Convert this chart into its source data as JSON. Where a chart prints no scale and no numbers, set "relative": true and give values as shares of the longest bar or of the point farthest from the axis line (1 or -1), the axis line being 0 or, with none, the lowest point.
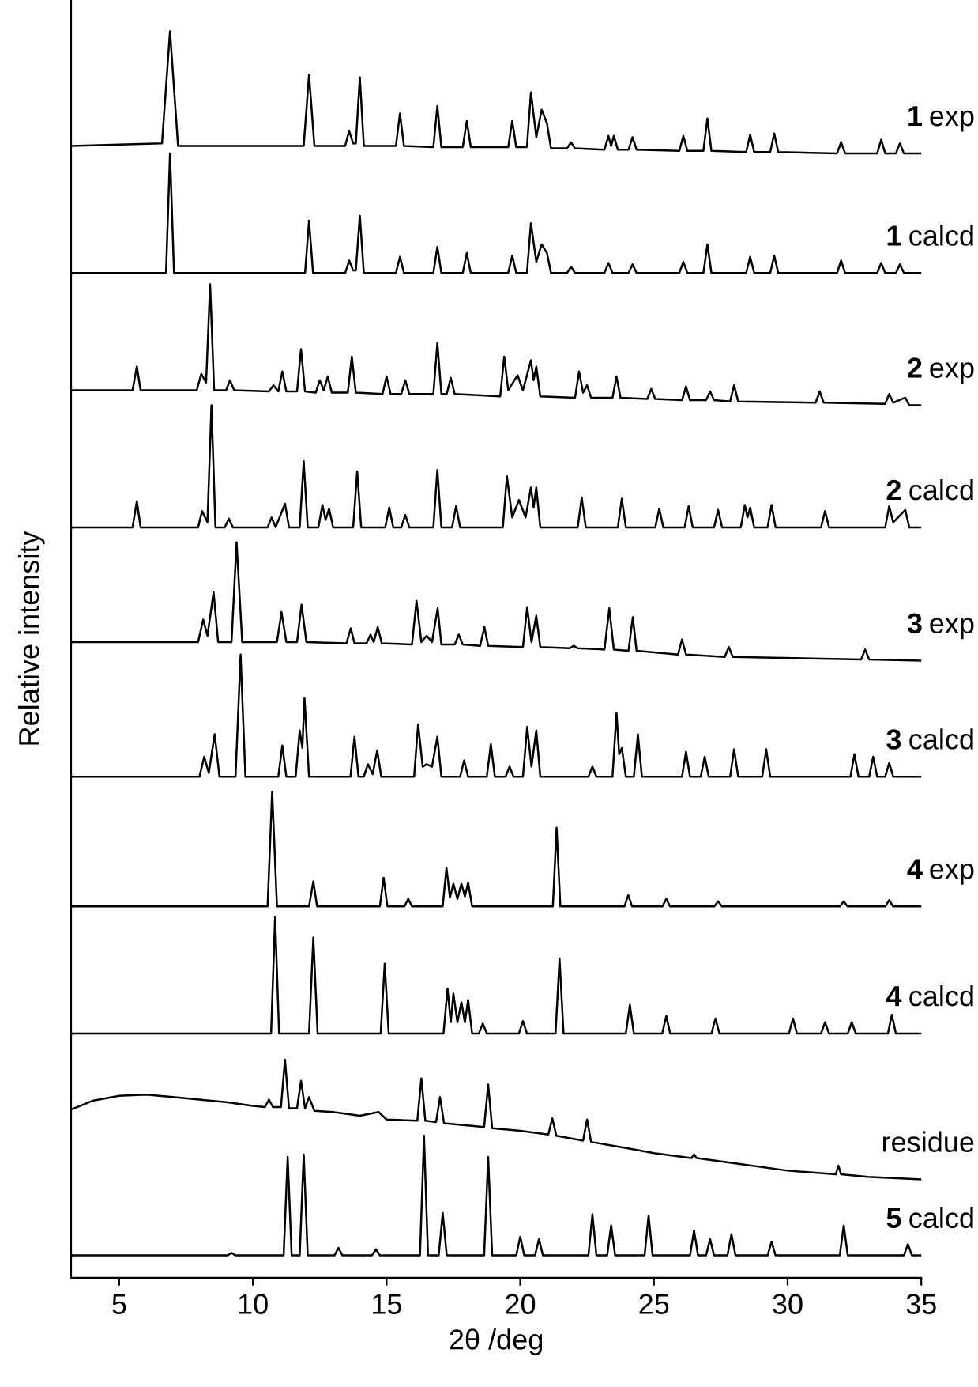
{
  "chart_data": {
    "type": "line",
    "relative": true,
    "xlabel": "2θ /deg",
    "ylabel": "Relative intensity",
    "xlim": [
      3.2,
      35
    ],
    "xticks": [
      5,
      10,
      15,
      20,
      25,
      30,
      35
    ],
    "series": [
      {
        "name": "1 exp",
        "color": "#000000",
        "x": [
          3.2,
          6.6,
          6.9,
          7.2,
          11.9,
          12.1,
          12.3,
          13.45,
          13.6,
          13.75,
          13.85,
          14.0,
          14.15,
          15.35,
          15.5,
          15.65,
          16.75,
          16.9,
          17.05,
          17.85,
          18.0,
          18.15,
          19.55,
          19.7,
          19.85,
          20.25,
          20.4,
          20.6,
          20.8,
          21.0,
          21.15,
          21.75,
          21.9,
          22.05,
          23.15,
          23.3,
          23.4,
          23.5,
          23.65,
          24.05,
          24.2,
          24.35,
          25.95,
          26.1,
          26.25,
          26.85,
          27.0,
          27.15,
          28.45,
          28.6,
          28.75,
          29.35,
          29.5,
          29.65,
          31.85,
          32.0,
          32.15,
          33.35,
          33.5,
          33.65,
          34.05,
          34.2,
          34.35,
          35
        ],
        "values": [
          0.908,
          0.91,
          1.0,
          0.908,
          0.908,
          0.965,
          0.908,
          0.908,
          0.92,
          0.91,
          0.91,
          0.963,
          0.908,
          0.908,
          0.934,
          0.908,
          0.907,
          0.94,
          0.907,
          0.907,
          0.928,
          0.907,
          0.907,
          0.928,
          0.907,
          0.907,
          0.951,
          0.915,
          0.937,
          0.926,
          0.906,
          0.906,
          0.911,
          0.906,
          0.905,
          0.916,
          0.908,
          0.916,
          0.905,
          0.905,
          0.915,
          0.905,
          0.904,
          0.916,
          0.904,
          0.904,
          0.93,
          0.904,
          0.903,
          0.917,
          0.903,
          0.903,
          0.918,
          0.903,
          0.902,
          0.911,
          0.902,
          0.902,
          0.913,
          0.902,
          0.902,
          0.91,
          0.902,
          0.902
        ]
      },
      {
        "name": "1 calcd",
        "color": "#000000",
        "x": [
          3.2,
          6.75,
          6.9,
          7.05,
          11.95,
          12.1,
          12.25,
          13.45,
          13.6,
          13.75,
          13.85,
          14.0,
          14.15,
          15.35,
          15.5,
          15.65,
          16.75,
          16.9,
          17.05,
          17.85,
          18.0,
          18.15,
          19.55,
          19.7,
          19.85,
          20.25,
          20.4,
          20.6,
          20.8,
          21.0,
          21.15,
          21.75,
          21.9,
          22.05,
          23.15,
          23.3,
          23.45,
          24.05,
          24.2,
          24.35,
          25.95,
          26.1,
          26.25,
          26.85,
          27.0,
          27.15,
          28.45,
          28.6,
          28.75,
          29.35,
          29.5,
          29.65,
          31.85,
          32.0,
          32.15,
          33.35,
          33.5,
          33.65,
          34.05,
          34.2,
          34.35,
          35
        ],
        "values": [
          0.806,
          0.806,
          0.902,
          0.806,
          0.806,
          0.848,
          0.806,
          0.806,
          0.816,
          0.808,
          0.808,
          0.852,
          0.806,
          0.806,
          0.819,
          0.806,
          0.806,
          0.827,
          0.806,
          0.806,
          0.822,
          0.806,
          0.806,
          0.82,
          0.806,
          0.806,
          0.846,
          0.815,
          0.829,
          0.822,
          0.806,
          0.806,
          0.811,
          0.806,
          0.806,
          0.814,
          0.806,
          0.806,
          0.813,
          0.806,
          0.806,
          0.815,
          0.806,
          0.806,
          0.829,
          0.806,
          0.806,
          0.819,
          0.806,
          0.806,
          0.82,
          0.806,
          0.806,
          0.816,
          0.806,
          0.806,
          0.814,
          0.806,
          0.806,
          0.813,
          0.806,
          0.806
        ]
      },
      {
        "name": "2 exp",
        "color": "#000000",
        "x": [
          3.2,
          5.5,
          5.66,
          5.8,
          7.9,
          8.07,
          8.25,
          8.4,
          8.55,
          9.0,
          9.14,
          9.3,
          10.6,
          10.77,
          10.95,
          11.1,
          11.25,
          11.65,
          11.8,
          11.95,
          12.35,
          12.5,
          12.65,
          12.8,
          12.95,
          13.55,
          13.7,
          13.85,
          14.85,
          15.0,
          15.15,
          15.55,
          15.7,
          15.85,
          16.75,
          16.9,
          17.05,
          17.25,
          17.4,
          17.55,
          19.25,
          19.4,
          19.55,
          19.9,
          20.1,
          20.4,
          20.5,
          20.6,
          20.75,
          22.05,
          22.2,
          22.35,
          22.5,
          22.65,
          23.45,
          23.6,
          23.75,
          24.75,
          24.9,
          25.05,
          26.05,
          26.2,
          26.35,
          26.95,
          27.1,
          27.25,
          27.85,
          28.0,
          28.15,
          31.05,
          31.2,
          31.35,
          33.65,
          33.8,
          33.95,
          34.4,
          34.55,
          35
        ],
        "values": [
          0.712,
          0.712,
          0.731,
          0.712,
          0.712,
          0.725,
          0.718,
          0.797,
          0.712,
          0.712,
          0.72,
          0.712,
          0.711,
          0.716,
          0.711,
          0.727,
          0.711,
          0.711,
          0.745,
          0.711,
          0.71,
          0.72,
          0.712,
          0.723,
          0.71,
          0.71,
          0.739,
          0.71,
          0.709,
          0.723,
          0.709,
          0.709,
          0.72,
          0.709,
          0.709,
          0.75,
          0.709,
          0.709,
          0.722,
          0.709,
          0.707,
          0.739,
          0.712,
          0.724,
          0.712,
          0.736,
          0.72,
          0.731,
          0.707,
          0.706,
          0.727,
          0.71,
          0.716,
          0.706,
          0.706,
          0.723,
          0.706,
          0.705,
          0.713,
          0.705,
          0.704,
          0.715,
          0.704,
          0.704,
          0.711,
          0.704,
          0.703,
          0.716,
          0.703,
          0.702,
          0.711,
          0.702,
          0.701,
          0.709,
          0.702,
          0.706,
          0.7,
          0.7
        ]
      },
      {
        "name": "2 calcd",
        "color": "#000000",
        "x": [
          3.2,
          5.5,
          5.66,
          5.8,
          7.95,
          8.1,
          8.3,
          8.45,
          8.6,
          8.95,
          9.1,
          9.25,
          10.55,
          10.7,
          10.85,
          11.2,
          11.35,
          11.75,
          11.9,
          12.05,
          12.45,
          12.6,
          12.72,
          12.85,
          13.0,
          13.75,
          13.9,
          14.05,
          14.95,
          15.1,
          15.25,
          15.55,
          15.7,
          15.85,
          16.75,
          16.9,
          17.05,
          17.45,
          17.6,
          17.75,
          19.35,
          19.5,
          19.7,
          19.95,
          20.2,
          20.4,
          20.5,
          20.6,
          20.75,
          22.15,
          22.3,
          22.45,
          23.65,
          23.8,
          23.95,
          25.05,
          25.2,
          25.35,
          26.15,
          26.3,
          26.45,
          27.25,
          27.4,
          27.55,
          28.25,
          28.4,
          28.5,
          28.6,
          28.75,
          29.25,
          29.4,
          29.55,
          31.25,
          31.4,
          31.55,
          33.65,
          33.8,
          33.95,
          34.4,
          34.55,
          35
        ],
        "values": [
          0.602,
          0.602,
          0.623,
          0.602,
          0.602,
          0.615,
          0.606,
          0.7,
          0.602,
          0.602,
          0.609,
          0.602,
          0.602,
          0.61,
          0.602,
          0.621,
          0.602,
          0.602,
          0.655,
          0.602,
          0.602,
          0.62,
          0.608,
          0.617,
          0.602,
          0.602,
          0.647,
          0.602,
          0.602,
          0.618,
          0.602,
          0.602,
          0.612,
          0.602,
          0.602,
          0.648,
          0.602,
          0.602,
          0.619,
          0.602,
          0.602,
          0.643,
          0.61,
          0.624,
          0.61,
          0.634,
          0.618,
          0.634,
          0.602,
          0.602,
          0.626,
          0.602,
          0.602,
          0.625,
          0.602,
          0.602,
          0.617,
          0.602,
          0.602,
          0.619,
          0.602,
          0.602,
          0.616,
          0.602,
          0.602,
          0.62,
          0.61,
          0.618,
          0.602,
          0.602,
          0.62,
          0.602,
          0.602,
          0.615,
          0.602,
          0.602,
          0.619,
          0.606,
          0.616,
          0.602,
          0.602
        ]
      },
      {
        "name": "3 exp",
        "color": "#000000",
        "x": [
          3.2,
          7.95,
          8.14,
          8.3,
          8.53,
          8.7,
          9.2,
          9.39,
          9.6,
          10.9,
          11.07,
          11.25,
          11.65,
          11.82,
          12.0,
          13.5,
          13.66,
          13.8,
          14.25,
          14.4,
          14.52,
          14.67,
          14.82,
          15.95,
          16.12,
          16.3,
          16.5,
          16.7,
          16.91,
          17.05,
          17.55,
          17.7,
          17.85,
          18.5,
          18.66,
          18.8,
          20.1,
          20.26,
          20.42,
          20.6,
          20.75,
          21.85,
          22.0,
          22.15,
          23.15,
          23.33,
          23.5,
          24.05,
          24.21,
          24.35,
          25.9,
          26.05,
          26.2,
          27.65,
          27.8,
          27.95,
          32.75,
          32.9,
          33.05,
          35
        ],
        "values": [
          0.51,
          0.51,
          0.528,
          0.515,
          0.55,
          0.51,
          0.51,
          0.59,
          0.51,
          0.51,
          0.534,
          0.51,
          0.51,
          0.54,
          0.51,
          0.509,
          0.521,
          0.509,
          0.509,
          0.516,
          0.51,
          0.522,
          0.509,
          0.508,
          0.543,
          0.51,
          0.515,
          0.51,
          0.537,
          0.508,
          0.508,
          0.516,
          0.508,
          0.507,
          0.522,
          0.507,
          0.506,
          0.538,
          0.51,
          0.531,
          0.506,
          0.505,
          0.507,
          0.505,
          0.504,
          0.537,
          0.504,
          0.503,
          0.53,
          0.503,
          0.5,
          0.512,
          0.5,
          0.498,
          0.506,
          0.498,
          0.496,
          0.504,
          0.496,
          0.495
        ]
      },
      {
        "name": "3 calcd",
        "color": "#000000",
        "x": [
          3.2,
          8.0,
          8.18,
          8.35,
          8.57,
          8.75,
          9.35,
          9.54,
          9.72,
          10.95,
          11.1,
          11.25,
          11.6,
          11.75,
          11.85,
          11.93,
          12.1,
          13.65,
          13.8,
          13.95,
          14.15,
          14.3,
          14.48,
          14.65,
          14.8,
          16.03,
          16.18,
          16.35,
          16.5,
          16.7,
          16.9,
          17.05,
          17.75,
          17.9,
          18.05,
          18.75,
          18.9,
          19.05,
          19.45,
          19.6,
          19.75,
          20.1,
          20.26,
          20.42,
          20.6,
          20.75,
          22.55,
          22.7,
          22.85,
          23.45,
          23.6,
          23.7,
          23.8,
          23.95,
          24.25,
          24.4,
          24.55,
          26.05,
          26.2,
          26.35,
          26.75,
          26.9,
          27.05,
          27.85,
          28.0,
          28.15,
          29.05,
          29.2,
          29.35,
          32.35,
          32.5,
          32.65,
          33.05,
          33.2,
          33.35,
          33.65,
          33.8,
          33.95,
          35
        ],
        "values": [
          0.402,
          0.402,
          0.418,
          0.405,
          0.436,
          0.402,
          0.402,
          0.5,
          0.402,
          0.402,
          0.427,
          0.402,
          0.402,
          0.439,
          0.425,
          0.465,
          0.402,
          0.402,
          0.434,
          0.402,
          0.402,
          0.412,
          0.404,
          0.423,
          0.402,
          0.402,
          0.444,
          0.41,
          0.412,
          0.41,
          0.434,
          0.402,
          0.402,
          0.415,
          0.402,
          0.402,
          0.428,
          0.402,
          0.402,
          0.41,
          0.402,
          0.402,
          0.442,
          0.41,
          0.439,
          0.402,
          0.402,
          0.41,
          0.402,
          0.402,
          0.453,
          0.42,
          0.425,
          0.402,
          0.402,
          0.436,
          0.402,
          0.402,
          0.422,
          0.402,
          0.402,
          0.418,
          0.402,
          0.402,
          0.424,
          0.402,
          0.402,
          0.424,
          0.402,
          0.402,
          0.42,
          0.402,
          0.402,
          0.418,
          0.402,
          0.402,
          0.413,
          0.402,
          0.402
        ]
      },
      {
        "name": "4 exp",
        "color": "#000000",
        "x": [
          3.2,
          10.55,
          10.72,
          10.9,
          12.1,
          12.26,
          12.4,
          14.75,
          14.89,
          15.03,
          15.67,
          15.81,
          15.95,
          17.1,
          17.24,
          17.37,
          17.5,
          17.65,
          17.8,
          17.93,
          18.05,
          18.2,
          21.22,
          21.36,
          21.5,
          23.9,
          24.04,
          24.18,
          25.32,
          25.46,
          25.6,
          27.26,
          27.4,
          27.54,
          31.96,
          32.1,
          32.24,
          33.66,
          33.8,
          33.94,
          35
        ],
        "values": [
          0.298,
          0.298,
          0.39,
          0.298,
          0.298,
          0.318,
          0.298,
          0.298,
          0.321,
          0.298,
          0.298,
          0.304,
          0.298,
          0.298,
          0.329,
          0.305,
          0.316,
          0.304,
          0.316,
          0.306,
          0.317,
          0.298,
          0.298,
          0.361,
          0.298,
          0.298,
          0.307,
          0.298,
          0.298,
          0.304,
          0.298,
          0.298,
          0.302,
          0.298,
          0.298,
          0.302,
          0.298,
          0.298,
          0.303,
          0.298,
          0.298
        ]
      },
      {
        "name": "4 calcd",
        "color": "#000000",
        "x": [
          3.2,
          10.68,
          10.83,
          10.98,
          12.1,
          12.26,
          12.42,
          14.78,
          14.93,
          15.08,
          17.13,
          17.28,
          17.4,
          17.5,
          17.65,
          17.8,
          17.93,
          18.05,
          18.2,
          18.45,
          18.6,
          18.75,
          19.95,
          20.1,
          20.25,
          21.32,
          21.47,
          21.62,
          23.95,
          24.1,
          24.25,
          25.31,
          25.46,
          25.61,
          27.15,
          27.3,
          27.45,
          30.05,
          30.2,
          30.35,
          31.25,
          31.4,
          31.55,
          32.25,
          32.4,
          32.55,
          33.75,
          33.9,
          34.05,
          35
        ],
        "values": [
          0.196,
          0.196,
          0.289,
          0.196,
          0.196,
          0.273,
          0.196,
          0.196,
          0.252,
          0.196,
          0.196,
          0.232,
          0.205,
          0.228,
          0.205,
          0.221,
          0.205,
          0.223,
          0.196,
          0.196,
          0.204,
          0.196,
          0.196,
          0.206,
          0.196,
          0.196,
          0.256,
          0.196,
          0.196,
          0.219,
          0.196,
          0.196,
          0.21,
          0.196,
          0.196,
          0.208,
          0.196,
          0.196,
          0.208,
          0.196,
          0.196,
          0.205,
          0.196,
          0.196,
          0.205,
          0.196,
          0.196,
          0.211,
          0.196,
          0.196
        ]
      },
      {
        "name": "residue",
        "color": "#000000",
        "x": [
          3.2,
          4,
          5,
          6,
          7,
          8,
          9,
          10,
          10.45,
          10.6,
          10.75,
          11.05,
          11.2,
          11.35,
          11.65,
          11.8,
          11.95,
          12.1,
          12.3,
          13,
          14,
          14.7,
          15,
          16.15,
          16.3,
          16.45,
          16.85,
          17.0,
          17.15,
          18.65,
          18.8,
          18.95,
          20,
          21.05,
          21.2,
          21.35,
          22.35,
          22.5,
          22.65,
          24,
          25,
          26.4,
          26.5,
          26.6,
          28,
          30,
          31.8,
          31.9,
          32,
          33,
          35
        ],
        "values": [
          0.135,
          0.142,
          0.146,
          0.147,
          0.145,
          0.143,
          0.141,
          0.138,
          0.137,
          0.143,
          0.137,
          0.137,
          0.175,
          0.136,
          0.136,
          0.158,
          0.136,
          0.145,
          0.134,
          0.133,
          0.13,
          0.133,
          0.127,
          0.126,
          0.16,
          0.126,
          0.125,
          0.145,
          0.124,
          0.121,
          0.155,
          0.12,
          0.118,
          0.115,
          0.128,
          0.114,
          0.11,
          0.127,
          0.109,
          0.104,
          0.1,
          0.096,
          0.099,
          0.096,
          0.092,
          0.086,
          0.083,
          0.09,
          0.083,
          0.081,
          0.079
        ]
      },
      {
        "name": "5 calcd",
        "color": "#000000",
        "x": [
          3.2,
          9.05,
          9.2,
          9.35,
          11.15,
          11.3,
          11.45,
          11.6,
          11.75,
          11.9,
          12.05,
          13.05,
          13.2,
          13.35,
          14.45,
          14.6,
          14.75,
          16.25,
          16.4,
          16.55,
          16.95,
          17.1,
          17.25,
          18.65,
          18.8,
          18.95,
          19.85,
          20.0,
          20.15,
          20.55,
          20.7,
          20.85,
          22.55,
          22.7,
          22.85,
          23.25,
          23.4,
          23.55,
          24.65,
          24.8,
          24.95,
          26.35,
          26.5,
          26.65,
          26.95,
          27.1,
          27.25,
          27.75,
          27.9,
          28.05,
          29.25,
          29.4,
          29.55,
          31.95,
          32.1,
          32.25,
          34.35,
          34.5,
          34.65,
          35
        ],
        "values": [
          0.018,
          0.018,
          0.02,
          0.018,
          0.018,
          0.097,
          0.018,
          0.018,
          0.018,
          0.099,
          0.018,
          0.018,
          0.024,
          0.018,
          0.018,
          0.023,
          0.018,
          0.018,
          0.114,
          0.018,
          0.018,
          0.052,
          0.018,
          0.018,
          0.097,
          0.018,
          0.018,
          0.033,
          0.018,
          0.018,
          0.031,
          0.018,
          0.018,
          0.051,
          0.018,
          0.018,
          0.042,
          0.018,
          0.018,
          0.05,
          0.018,
          0.018,
          0.038,
          0.018,
          0.018,
          0.031,
          0.018,
          0.018,
          0.035,
          0.018,
          0.018,
          0.029,
          0.018,
          0.018,
          0.042,
          0.018,
          0.018,
          0.027,
          0.018,
          0.018
        ]
      }
    ]
  }
}
